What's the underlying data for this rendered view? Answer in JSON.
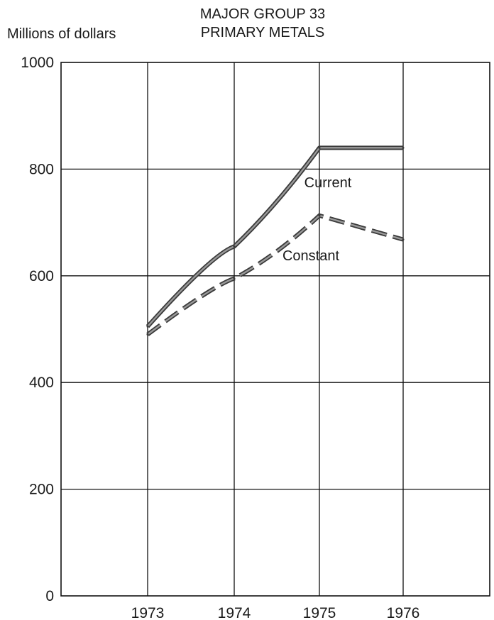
{
  "chart_data": {
    "type": "line",
    "title": "MAJOR GROUP 33",
    "subtitle": "PRIMARY METALS",
    "ylabel": "Millions of dollars",
    "xlabel": "",
    "x": [
      "1973",
      "1974",
      "1975",
      "1976"
    ],
    "ylim": [
      0,
      1000
    ],
    "yticks": [
      0,
      200,
      400,
      600,
      800,
      1000
    ],
    "grid": true,
    "series": [
      {
        "name": "Current",
        "values": [
          505,
          655,
          840,
          840
        ],
        "style": "solid",
        "color": "#555555"
      },
      {
        "name": "Constant",
        "values": [
          490,
          595,
          713,
          668
        ],
        "style": "dashed",
        "color": "#555555"
      }
    ]
  }
}
